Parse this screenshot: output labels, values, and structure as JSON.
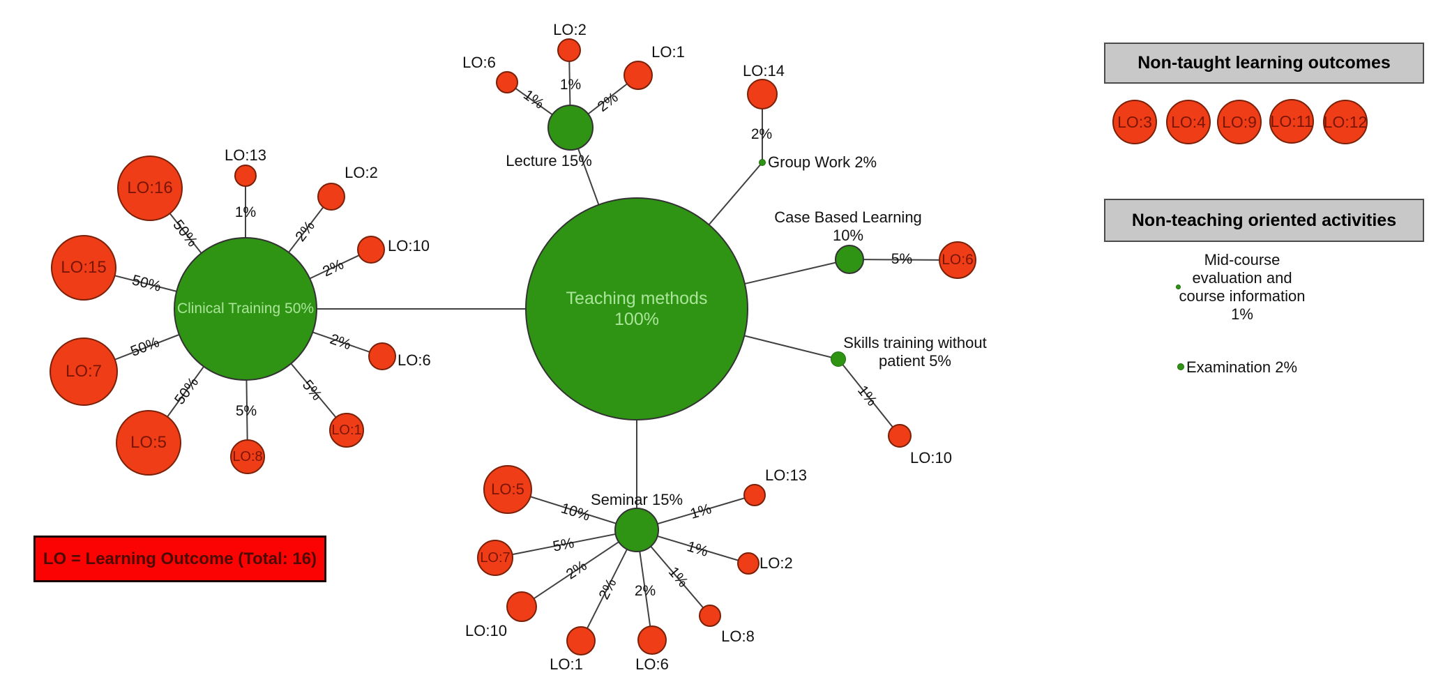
{
  "colors": {
    "method_green": "#2f9314",
    "method_text_green": "#a9e699",
    "outcome_red": "#ee3d17",
    "outcome_text_red": "#7a1505",
    "line_gray": "#404040",
    "header_gray": "#c8c8c8",
    "legend_red": "#fb0303"
  },
  "network": {
    "hub": {
      "id": "teaching-methods",
      "label": "Teaching methods",
      "pct": "100%"
    },
    "methods": [
      {
        "id": "clinical-training",
        "label": "Clinical Training",
        "pct": "50%",
        "outcomes": [
          {
            "lo": "LO:16",
            "pct": "50%"
          },
          {
            "lo": "LO:13",
            "pct": "1%"
          },
          {
            "lo": "LO:2",
            "pct": "2%"
          },
          {
            "lo": "LO:10",
            "pct": "2%"
          },
          {
            "lo": "LO:15",
            "pct": "50%"
          },
          {
            "lo": "LO:7",
            "pct": "50%"
          },
          {
            "lo": "LO:6",
            "pct": "2%"
          },
          {
            "lo": "LO:5",
            "pct": "50%"
          },
          {
            "lo": "LO:8",
            "pct": "5%"
          },
          {
            "lo": "LO:1",
            "pct": "5%"
          }
        ]
      },
      {
        "id": "lecture",
        "label": "Lecture",
        "pct": "15%",
        "outcomes": [
          {
            "lo": "LO:6",
            "pct": "1%"
          },
          {
            "lo": "LO:2",
            "pct": "1%"
          },
          {
            "lo": "LO:1",
            "pct": "2%"
          }
        ]
      },
      {
        "id": "group-work",
        "label": "Group Work",
        "pct": "2%",
        "outcomes": [
          {
            "lo": "LO:14",
            "pct": "2%"
          }
        ]
      },
      {
        "id": "case-based-learning",
        "label": "Case Based Learning",
        "pct": "10%",
        "outcomes": [
          {
            "lo": "LO:6",
            "pct": "5%"
          }
        ]
      },
      {
        "id": "skills-training-without-patient",
        "label": "Skills training without patient",
        "pct": "5%",
        "outcomes": [
          {
            "lo": "LO:10",
            "pct": "1%"
          }
        ]
      },
      {
        "id": "seminar",
        "label": "Seminar",
        "pct": "15%",
        "outcomes": [
          {
            "lo": "LO:5",
            "pct": "10%"
          },
          {
            "lo": "LO:7",
            "pct": "5%"
          },
          {
            "lo": "LO:10",
            "pct": "2%"
          },
          {
            "lo": "LO:1",
            "pct": "2%"
          },
          {
            "lo": "LO:6",
            "pct": "2%"
          },
          {
            "lo": "LO:8",
            "pct": "1%"
          },
          {
            "lo": "LO:2",
            "pct": "1%"
          },
          {
            "lo": "LO:13",
            "pct": "1%"
          }
        ]
      }
    ]
  },
  "right_panel": {
    "non_taught": {
      "title": "Non-taught learning outcomes",
      "outcomes": [
        "LO:3",
        "LO:4",
        "LO:9",
        "LO:11",
        "LO:12"
      ]
    },
    "non_teaching": {
      "title": "Non-teaching oriented activities",
      "items": [
        {
          "label": "Mid-course evaluation and course information",
          "pct": "1%"
        },
        {
          "label": "Examination",
          "pct": "2%"
        }
      ]
    }
  },
  "legend": {
    "text": "LO = Learning Outcome (Total: 16)"
  }
}
